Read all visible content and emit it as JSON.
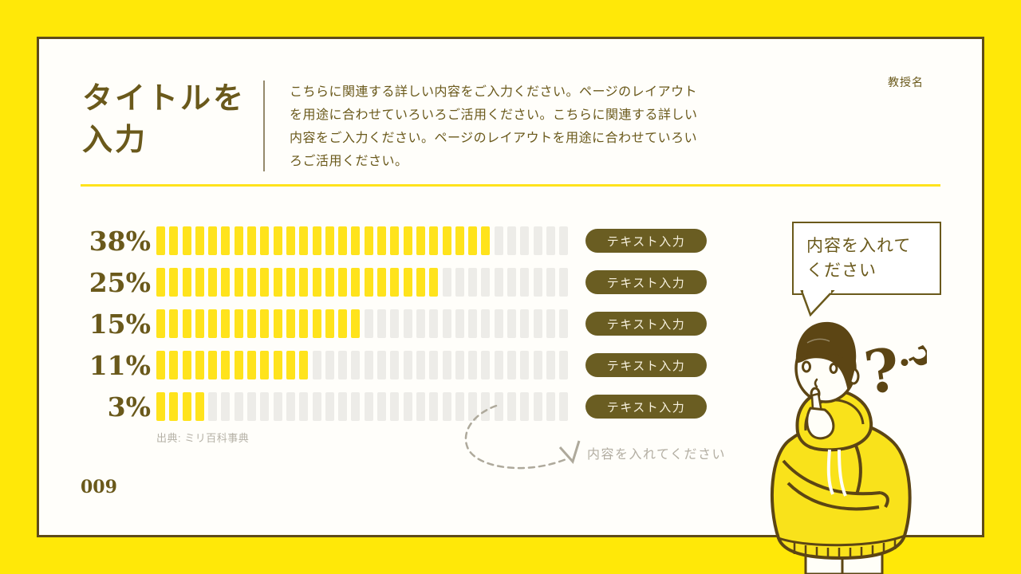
{
  "slide": {
    "title_line1": "タイトルを",
    "title_line2": "入力",
    "description": "こちらに関連する詳しい内容をご入力ください。ページのレイアウトを用途に合わせていろいろご活用ください。こちらに関連する詳しい内容をご入力ください。ページのレイアウトを用途に合わせていろいろご活用ください。",
    "professor_label": "教授名",
    "page_number": "009"
  },
  "chart_data": {
    "type": "bar",
    "orientation": "horizontal",
    "title": "",
    "unit": "%",
    "values": [
      38,
      25,
      15,
      11,
      3
    ],
    "value_labels": [
      "38%",
      "25%",
      "15%",
      "11%",
      "3%"
    ],
    "row_buttons": [
      "テキスト入力",
      "テキスト入力",
      "テキスト入力",
      "テキスト入力",
      "テキスト入力"
    ],
    "segments_total": 32,
    "segments_filled": [
      26,
      22,
      16,
      12,
      4
    ],
    "filled_color": "#FFE31C",
    "empty_color": "#EDECE8",
    "source": "出典: ミリ百科事典",
    "legend": "none",
    "grid": "off"
  },
  "annotations": {
    "arrow_hint_text": "内容を入れてください",
    "speech_bubble_text": "内容を入れてください"
  },
  "colors": {
    "frame_yellow": "#FFE808",
    "panel_background": "#FFFEFA",
    "panel_border": "#5E4B19",
    "accent_olive": "#6A591B",
    "pill_background": "#6A5D22",
    "pill_text": "#F7F1DE",
    "muted_gray": "#B3AEA2",
    "illustration_outline": "#5C4514",
    "illustration_yellow": "#F9E21B"
  }
}
